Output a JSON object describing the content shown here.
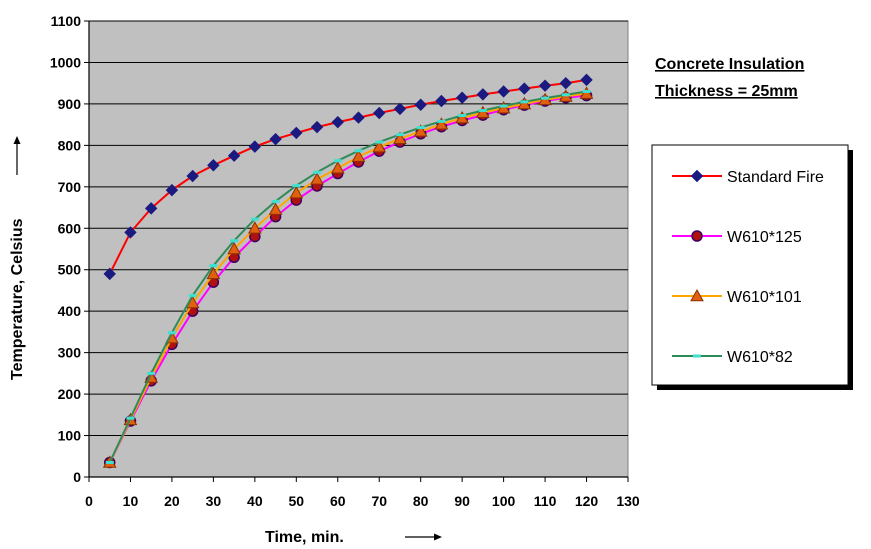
{
  "chart_data": {
    "type": "line",
    "title_lines": [
      "Concrete Insulation",
      "Thickness = 25mm"
    ],
    "xlabel": "Time, min.",
    "ylabel": "Temperature, Celsius",
    "xlim": [
      0,
      130
    ],
    "ylim": [
      0,
      1100
    ],
    "xticks": [
      0,
      10,
      20,
      30,
      40,
      50,
      60,
      70,
      80,
      90,
      100,
      110,
      120,
      130
    ],
    "yticks": [
      0,
      100,
      200,
      300,
      400,
      500,
      600,
      700,
      800,
      900,
      1000,
      1100
    ],
    "grid": true,
    "legend_position": "right",
    "plot_background": "#c0c0c0",
    "x": [
      5,
      10,
      15,
      20,
      25,
      30,
      35,
      40,
      45,
      50,
      55,
      60,
      65,
      70,
      75,
      80,
      85,
      90,
      95,
      100,
      105,
      110,
      115,
      120
    ],
    "series": [
      {
        "name": "Standard Fire",
        "line_color": "#ff0000",
        "marker": "diamond",
        "marker_color": "#1a1a80",
        "values": [
          490,
          590,
          648,
          692,
          726,
          752,
          775,
          797,
          815,
          830,
          844,
          856,
          867,
          878,
          888,
          898,
          907,
          915,
          923,
          930,
          937,
          944,
          950,
          958
        ]
      },
      {
        "name": "W610*125",
        "line_color": "#ff00ff",
        "marker": "circle",
        "marker_color": "#800000",
        "values": [
          35,
          135,
          232,
          320,
          400,
          470,
          530,
          580,
          628,
          668,
          702,
          732,
          760,
          786,
          808,
          828,
          845,
          860,
          873,
          886,
          897,
          907,
          915,
          920
        ]
      },
      {
        "name": "W610*101",
        "line_color": "#ffa500",
        "marker": "triangle",
        "marker_color": "#e06010",
        "values": [
          35,
          138,
          240,
          335,
          420,
          490,
          550,
          600,
          645,
          685,
          718,
          745,
          773,
          796,
          816,
          834,
          851,
          866,
          879,
          890,
          900,
          910,
          918,
          925
        ]
      },
      {
        "name": "W610*82",
        "line_color": "#2e8b57",
        "marker": "dash",
        "marker_color": "#40e0d0",
        "values": [
          35,
          142,
          250,
          348,
          438,
          510,
          570,
          622,
          665,
          703,
          735,
          763,
          787,
          808,
          826,
          843,
          858,
          872,
          884,
          895,
          905,
          914,
          922,
          930
        ]
      }
    ]
  }
}
